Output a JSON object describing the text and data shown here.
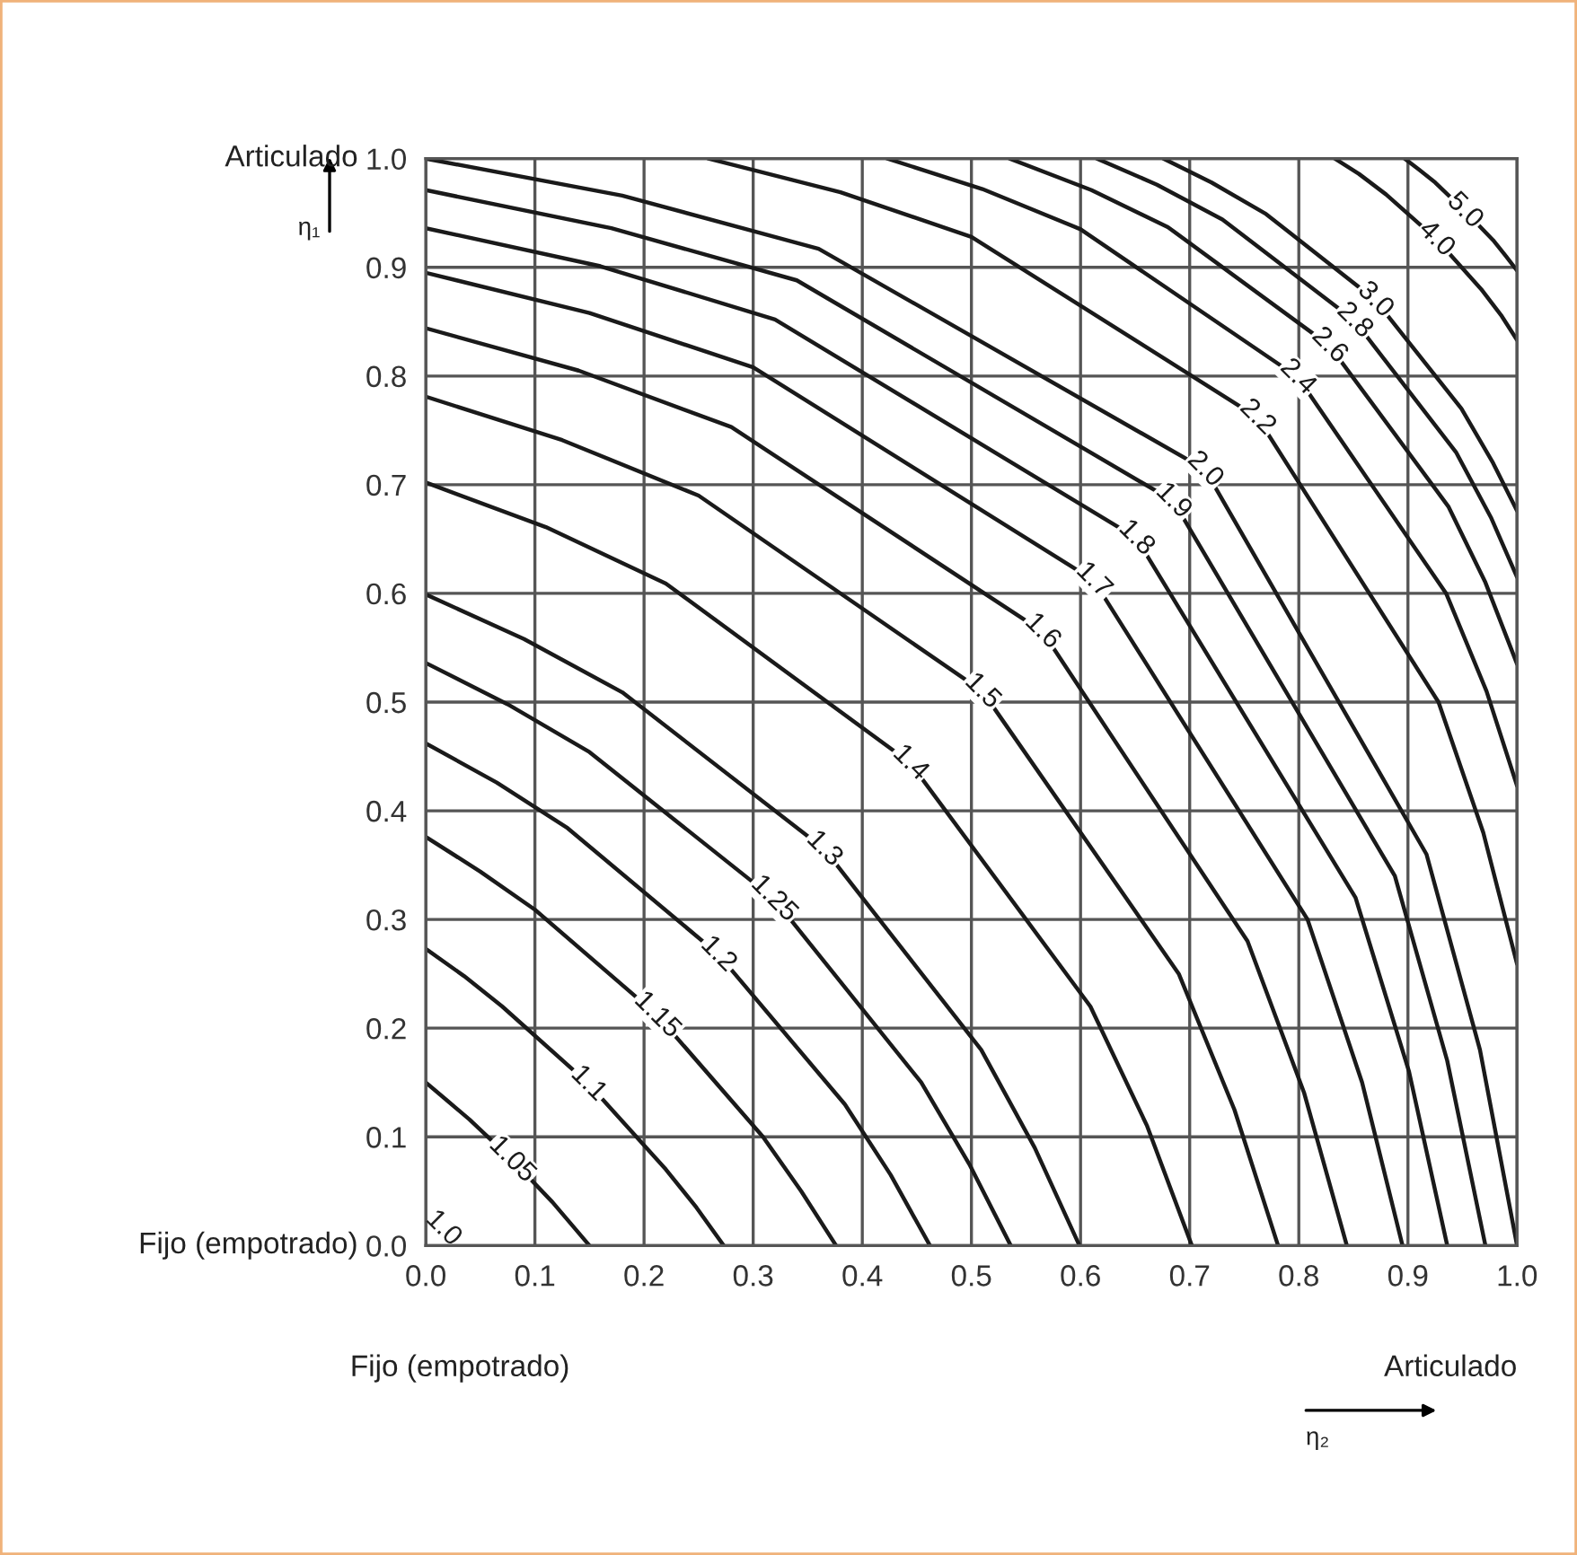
{
  "chart_data": {
    "type": "line",
    "xlim": [
      0,
      1
    ],
    "ylim": [
      0,
      1
    ],
    "xticks": [
      {
        "value": 0,
        "label": "0.0"
      },
      {
        "value": 0.1,
        "label": "0.1"
      },
      {
        "value": 0.2,
        "label": "0.2"
      },
      {
        "value": 0.3,
        "label": "0.3"
      },
      {
        "value": 0.4,
        "label": "0.4"
      },
      {
        "value": 0.5,
        "label": "0.5"
      },
      {
        "value": 0.6,
        "label": "0.6"
      },
      {
        "value": 0.7,
        "label": "0.7"
      },
      {
        "value": 0.8,
        "label": "0.8"
      },
      {
        "value": 0.9,
        "label": "0.9"
      },
      {
        "value": 1,
        "label": "1.0"
      }
    ],
    "yticks": [
      {
        "value": 0,
        "label": "0.0"
      },
      {
        "value": 0.1,
        "label": "0.1"
      },
      {
        "value": 0.2,
        "label": "0.2"
      },
      {
        "value": 0.3,
        "label": "0.3"
      },
      {
        "value": 0.4,
        "label": "0.4"
      },
      {
        "value": 0.5,
        "label": "0.5"
      },
      {
        "value": 0.6,
        "label": "0.6"
      },
      {
        "value": 0.7,
        "label": "0.7"
      },
      {
        "value": 0.8,
        "label": "0.8"
      },
      {
        "value": 0.9,
        "label": "0.9"
      },
      {
        "value": 1,
        "label": "1.0"
      }
    ],
    "grid": true,
    "legend": false,
    "marker": "none",
    "line_style": "solid",
    "series": [
      {
        "name": "1.05",
        "color": "#1a1a1a",
        "x": [
          0,
          0.02,
          0.04,
          0.079,
          0.116,
          0.133,
          0.15
        ],
        "values": [
          0.15,
          0.133,
          0.116,
          0.079,
          0.04,
          0.02,
          0
        ]
      },
      {
        "name": "1.1",
        "color": "#1a1a1a",
        "x": [
          0,
          0.035,
          0.07,
          0.149,
          0.22,
          0.248,
          0.273
        ],
        "values": [
          0.273,
          0.248,
          0.22,
          0.149,
          0.07,
          0.035,
          0
        ]
      },
      {
        "name": "1.15",
        "color": "#1a1a1a",
        "x": [
          0,
          0.05,
          0.1,
          0.212,
          0.309,
          0.344,
          0.376
        ],
        "values": [
          0.376,
          0.344,
          0.309,
          0.212,
          0.1,
          0.05,
          0
        ]
      },
      {
        "name": "1.2",
        "color": "#1a1a1a",
        "x": [
          0,
          0.065,
          0.13,
          0.268,
          0.384,
          0.426,
          0.462
        ],
        "values": [
          0.462,
          0.426,
          0.384,
          0.268,
          0.13,
          0.065,
          0
        ]
      },
      {
        "name": "1.25",
        "color": "#1a1a1a",
        "x": [
          0,
          0.075,
          0.15,
          0.319,
          0.454,
          0.498,
          0.536
        ],
        "values": [
          0.536,
          0.498,
          0.454,
          0.319,
          0.15,
          0.075,
          0
        ]
      },
      {
        "name": "1.3",
        "color": "#1a1a1a",
        "x": [
          0,
          0.09,
          0.18,
          0.365,
          0.509,
          0.558,
          0.599
        ],
        "values": [
          0.599,
          0.558,
          0.509,
          0.365,
          0.18,
          0.09,
          0
        ]
      },
      {
        "name": "1.4",
        "color": "#1a1a1a",
        "x": [
          0,
          0.11,
          0.22,
          0.444,
          0.609,
          0.661,
          0.702
        ],
        "values": [
          0.702,
          0.661,
          0.609,
          0.444,
          0.22,
          0.11,
          0
        ]
      },
      {
        "name": "1.5",
        "color": "#1a1a1a",
        "x": [
          0,
          0.125,
          0.25,
          0.51,
          0.69,
          0.741,
          0.781
        ],
        "values": [
          0.781,
          0.741,
          0.69,
          0.51,
          0.25,
          0.125,
          0
        ]
      },
      {
        "name": "1.6",
        "color": "#1a1a1a",
        "x": [
          0,
          0.14,
          0.28,
          0.565,
          0.753,
          0.805,
          0.844
        ],
        "values": [
          0.844,
          0.805,
          0.753,
          0.565,
          0.28,
          0.14,
          0
        ]
      },
      {
        "name": "1.7",
        "color": "#1a1a1a",
        "x": [
          0,
          0.15,
          0.3,
          0.612,
          0.808,
          0.858,
          0.895
        ],
        "values": [
          0.895,
          0.858,
          0.808,
          0.612,
          0.3,
          0.15,
          0
        ]
      },
      {
        "name": "1.8",
        "color": "#1a1a1a",
        "x": [
          0,
          0.16,
          0.32,
          0.651,
          0.852,
          0.901,
          0.936
        ],
        "values": [
          0.936,
          0.901,
          0.852,
          0.651,
          0.32,
          0.16,
          0
        ]
      },
      {
        "name": "1.9",
        "color": "#1a1a1a",
        "x": [
          0,
          0.17,
          0.34,
          0.685,
          0.888,
          0.936,
          0.971
        ],
        "values": [
          0.971,
          0.936,
          0.888,
          0.685,
          0.34,
          0.17,
          0
        ]
      },
      {
        "name": "2.0",
        "color": "#1a1a1a",
        "x": [
          0,
          0.18,
          0.36,
          0.714,
          0.917,
          0.966,
          1
        ],
        "values": [
          1,
          0.966,
          0.917,
          0.714,
          0.36,
          0.18,
          0
        ]
      },
      {
        "name": "2.2",
        "color": "#1a1a1a",
        "x": [
          0.259,
          0.38,
          0.5,
          0.762,
          0.928,
          0.969,
          1
        ],
        "values": [
          1,
          0.969,
          0.928,
          0.762,
          0.5,
          0.38,
          0.259
        ]
      },
      {
        "name": "2.4",
        "color": "#1a1a1a",
        "x": [
          0.423,
          0.51,
          0.6,
          0.799,
          0.935,
          0.972,
          1
        ],
        "values": [
          1,
          0.972,
          0.935,
          0.799,
          0.6,
          0.51,
          0.423
        ]
      },
      {
        "name": "2.6",
        "color": "#1a1a1a",
        "x": [
          0.535,
          0.61,
          0.68,
          0.828,
          0.937,
          0.971,
          1
        ],
        "values": [
          1,
          0.971,
          0.937,
          0.828,
          0.68,
          0.61,
          0.535
        ]
      },
      {
        "name": "2.8",
        "color": "#1a1a1a",
        "x": [
          0.615,
          0.67,
          0.73,
          0.851,
          0.944,
          0.976,
          1
        ],
        "values": [
          1,
          0.976,
          0.944,
          0.851,
          0.73,
          0.67,
          0.615
        ]
      },
      {
        "name": "3.0",
        "color": "#1a1a1a",
        "x": [
          0.676,
          0.72,
          0.77,
          0.87,
          0.949,
          0.978,
          1
        ],
        "values": [
          1,
          0.978,
          0.949,
          0.87,
          0.77,
          0.72,
          0.676
        ]
      },
      {
        "name": "4.0",
        "color": "#1a1a1a",
        "x": [
          0.833,
          0.855,
          0.88,
          0.926,
          0.967,
          0.986,
          1
        ],
        "values": [
          1,
          0.986,
          0.967,
          0.926,
          0.88,
          0.855,
          0.833
        ]
      },
      {
        "name": "5.0",
        "color": "#1a1a1a",
        "x": [
          0.897,
          0.91,
          0.925,
          0.952,
          0.978,
          0.99,
          1
        ],
        "values": [
          1,
          0.99,
          0.978,
          0.952,
          0.925,
          0.91,
          0.897
        ]
      }
    ],
    "annotations": [
      "Articulado",
      "Fijo (empotrado)",
      "Fijo (empotrado)",
      "Articulado",
      "η₁",
      "η₂",
      "1.0"
    ]
  }
}
